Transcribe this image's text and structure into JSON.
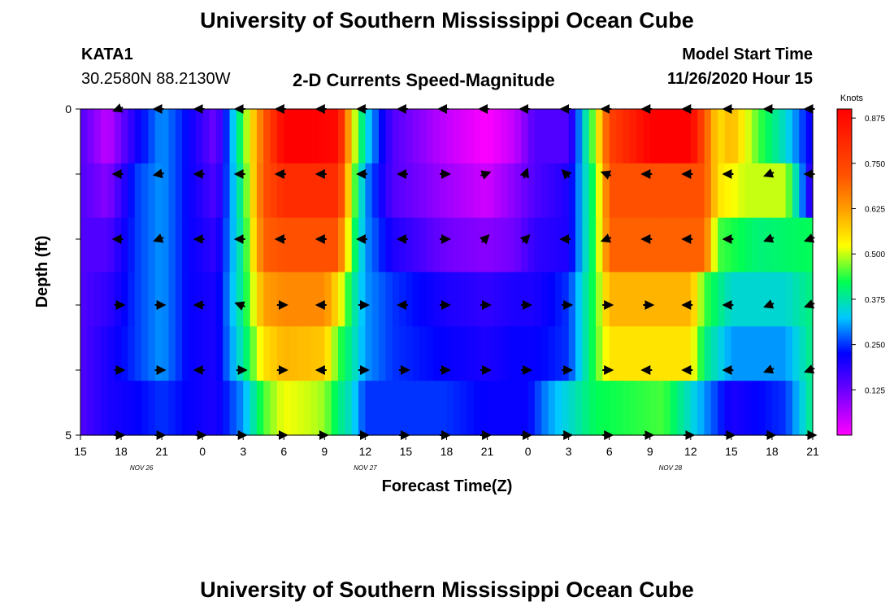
{
  "header": {
    "title": "University of Southern Mississippi Ocean Cube",
    "station": "KATA1",
    "coords": "30.2580N 88.2130W",
    "subtitle": "2-D Currents Speed-Magnitude",
    "model_label": "Model Start Time",
    "model_time": "11/26/2020 Hour 15"
  },
  "footer": {
    "title": "University of Southern Mississippi Ocean Cube"
  },
  "chart_data": {
    "type": "heatmap",
    "title": "2-D Currents Speed-Magnitude",
    "xlabel": "Forecast Time(Z)",
    "ylabel": "Depth (ft)",
    "x_hours": [
      0,
      54
    ],
    "ylim": [
      0,
      5
    ],
    "x_ticks": [
      "15",
      "18",
      "21",
      "0",
      "3",
      "6",
      "9",
      "12",
      "15",
      "18",
      "21",
      "0",
      "3",
      "6",
      "9",
      "12",
      "15",
      "18",
      "21"
    ],
    "y_ticks": [
      "0",
      "",
      "",
      "",
      "",
      "5"
    ],
    "date_labels": [
      {
        "text": "NOV 26",
        "hour": 4.5
      },
      {
        "text": "NOV 27",
        "hour": 21
      },
      {
        "text": "NOV 28",
        "hour": 43.5
      }
    ],
    "colorbar": {
      "label": "Knots",
      "range": [
        0,
        0.9
      ],
      "ticks": [
        "0.875",
        "0.750",
        "0.625",
        "0.500",
        "0.375",
        "0.250",
        "0.125"
      ],
      "tick_values": [
        0.875,
        0.75,
        0.625,
        0.5,
        0.375,
        0.25,
        0.125
      ]
    },
    "series": [
      {
        "name": "depth layer 1 (surface)",
        "hour_knots": [
          [
            0,
            0.15
          ],
          [
            2,
            0.05
          ],
          [
            4,
            0.2
          ],
          [
            6,
            0.3
          ],
          [
            8,
            0.22
          ],
          [
            10,
            0.12
          ],
          [
            12,
            0.45
          ],
          [
            13.5,
            0.7
          ],
          [
            15,
            0.9
          ],
          [
            17,
            0.9
          ],
          [
            19,
            0.88
          ],
          [
            20,
            0.55
          ],
          [
            21,
            0.35
          ],
          [
            23,
            0.15
          ],
          [
            27,
            0.05
          ],
          [
            30,
            0.0
          ],
          [
            32,
            0.05
          ],
          [
            33.5,
            0.15
          ],
          [
            36,
            0.15
          ],
          [
            38,
            0.5
          ],
          [
            39,
            0.75
          ],
          [
            42,
            0.9
          ],
          [
            45,
            0.9
          ],
          [
            47,
            0.55
          ],
          [
            48,
            0.6
          ],
          [
            50,
            0.45
          ],
          [
            52,
            0.35
          ],
          [
            54,
            0.2
          ]
        ]
      },
      {
        "name": "depth layer 2",
        "hour_knots": [
          [
            0,
            0.15
          ],
          [
            2,
            0.1
          ],
          [
            4,
            0.25
          ],
          [
            6,
            0.3
          ],
          [
            8,
            0.22
          ],
          [
            10,
            0.15
          ],
          [
            12,
            0.42
          ],
          [
            13.5,
            0.72
          ],
          [
            15,
            0.8
          ],
          [
            19,
            0.8
          ],
          [
            20,
            0.5
          ],
          [
            21,
            0.3
          ],
          [
            23,
            0.15
          ],
          [
            27,
            0.08
          ],
          [
            30,
            0.04
          ],
          [
            32,
            0.1
          ],
          [
            33.5,
            0.15
          ],
          [
            36,
            0.2
          ],
          [
            38,
            0.45
          ],
          [
            39,
            0.72
          ],
          [
            46,
            0.72
          ],
          [
            47,
            0.55
          ],
          [
            49,
            0.5
          ],
          [
            52,
            0.5
          ],
          [
            54,
            0.15
          ]
        ]
      },
      {
        "name": "depth layer 3",
        "hour_knots": [
          [
            0,
            0.15
          ],
          [
            2,
            0.15
          ],
          [
            4,
            0.25
          ],
          [
            6,
            0.3
          ],
          [
            8,
            0.22
          ],
          [
            10,
            0.18
          ],
          [
            12,
            0.4
          ],
          [
            13.5,
            0.7
          ],
          [
            15,
            0.72
          ],
          [
            19,
            0.72
          ],
          [
            20,
            0.45
          ],
          [
            21,
            0.3
          ],
          [
            23,
            0.2
          ],
          [
            27,
            0.12
          ],
          [
            30,
            0.1
          ],
          [
            32,
            0.12
          ],
          [
            33.5,
            0.18
          ],
          [
            36,
            0.2
          ],
          [
            38,
            0.45
          ],
          [
            39,
            0.7
          ],
          [
            46,
            0.7
          ],
          [
            47,
            0.45
          ],
          [
            50,
            0.4
          ],
          [
            54,
            0.42
          ]
        ]
      },
      {
        "name": "depth layer 4",
        "hour_knots": [
          [
            0,
            0.15
          ],
          [
            2,
            0.18
          ],
          [
            4,
            0.25
          ],
          [
            6,
            0.3
          ],
          [
            8,
            0.22
          ],
          [
            10,
            0.2
          ],
          [
            12,
            0.4
          ],
          [
            13.5,
            0.62
          ],
          [
            15,
            0.65
          ],
          [
            18,
            0.65
          ],
          [
            19,
            0.55
          ],
          [
            20,
            0.4
          ],
          [
            21,
            0.3
          ],
          [
            23,
            0.25
          ],
          [
            27,
            0.2
          ],
          [
            30,
            0.18
          ],
          [
            32,
            0.2
          ],
          [
            33.5,
            0.2
          ],
          [
            36,
            0.25
          ],
          [
            38,
            0.45
          ],
          [
            39,
            0.6
          ],
          [
            45,
            0.6
          ],
          [
            46,
            0.45
          ],
          [
            48,
            0.35
          ],
          [
            52,
            0.35
          ],
          [
            54,
            0.4
          ]
        ]
      },
      {
        "name": "depth layer 5",
        "hour_knots": [
          [
            0,
            0.15
          ],
          [
            2,
            0.2
          ],
          [
            4,
            0.25
          ],
          [
            6,
            0.3
          ],
          [
            8,
            0.22
          ],
          [
            10,
            0.2
          ],
          [
            12,
            0.38
          ],
          [
            13.5,
            0.55
          ],
          [
            15,
            0.6
          ],
          [
            18,
            0.58
          ],
          [
            19,
            0.45
          ],
          [
            20,
            0.38
          ],
          [
            21,
            0.3
          ],
          [
            23,
            0.25
          ],
          [
            27,
            0.22
          ],
          [
            30,
            0.2
          ],
          [
            32,
            0.22
          ],
          [
            33.5,
            0.22
          ],
          [
            36,
            0.25
          ],
          [
            38,
            0.45
          ],
          [
            39,
            0.55
          ],
          [
            45,
            0.55
          ],
          [
            46,
            0.4
          ],
          [
            48,
            0.3
          ],
          [
            52,
            0.3
          ],
          [
            54,
            0.4
          ]
        ]
      },
      {
        "name": "depth layer 6 (bottom)",
        "hour_knots": [
          [
            0,
            0.15
          ],
          [
            2,
            0.2
          ],
          [
            4,
            0.22
          ],
          [
            6,
            0.25
          ],
          [
            8,
            0.22
          ],
          [
            10,
            0.2
          ],
          [
            12,
            0.3
          ],
          [
            13.5,
            0.45
          ],
          [
            15,
            0.52
          ],
          [
            17,
            0.5
          ],
          [
            18,
            0.48
          ],
          [
            19,
            0.4
          ],
          [
            20,
            0.35
          ],
          [
            21,
            0.25
          ],
          [
            23,
            0.25
          ],
          [
            27,
            0.25
          ],
          [
            30,
            0.22
          ],
          [
            33,
            0.22
          ],
          [
            34.5,
            0.3
          ],
          [
            36,
            0.35
          ],
          [
            38,
            0.42
          ],
          [
            43,
            0.45
          ],
          [
            46,
            0.3
          ],
          [
            48,
            0.2
          ],
          [
            52,
            0.25
          ],
          [
            54,
            0.4
          ]
        ]
      }
    ],
    "vectors": {
      "hours": [
        3,
        6,
        9,
        12,
        15,
        18,
        21,
        24,
        27,
        30,
        33,
        36,
        39,
        42,
        45,
        48,
        51,
        54
      ],
      "direction_deg": [
        [
          200,
          180,
          180,
          180,
          180,
          180,
          180,
          180,
          180,
          180,
          180,
          180,
          180,
          180,
          180,
          180,
          180,
          180
        ],
        [
          180,
          190,
          180,
          180,
          180,
          180,
          180,
          180,
          0,
          20,
          70,
          135,
          160,
          180,
          180,
          180,
          200,
          180
        ],
        [
          180,
          200,
          180,
          180,
          180,
          180,
          180,
          180,
          0,
          45,
          45,
          180,
          200,
          180,
          180,
          180,
          200,
          200
        ],
        [
          0,
          0,
          180,
          160,
          0,
          180,
          0,
          180,
          0,
          0,
          0,
          0,
          0,
          0,
          180,
          180,
          200,
          200
        ],
        [
          0,
          0,
          180,
          0,
          0,
          180,
          0,
          0,
          0,
          0,
          0,
          0,
          0,
          180,
          180,
          180,
          200,
          200
        ],
        [
          0,
          0,
          0,
          0,
          0,
          0,
          0,
          0,
          0,
          0,
          0,
          0,
          0,
          0,
          0,
          0,
          0,
          0
        ]
      ]
    }
  }
}
